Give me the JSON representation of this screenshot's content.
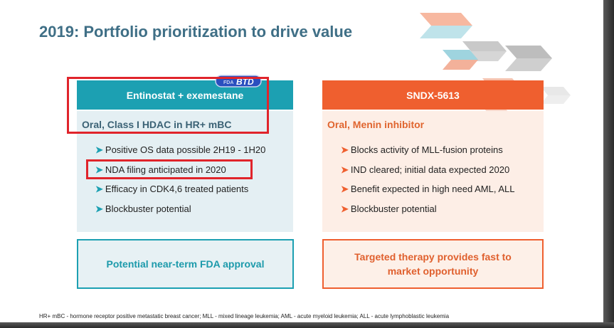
{
  "slide": {
    "title": "2019: Portfolio prioritization to drive value",
    "left": {
      "header": "Entinostat + exemestane",
      "badge": "BTD",
      "subtitle": "Oral, Class I HDAC in HR+ mBC",
      "bullets": [
        "Positive OS data possible 2H19 - 1H20",
        "NDA filing anticipated in 2020",
        "Efficacy in CDK4,6 treated patients",
        "Blockbuster potential"
      ],
      "footer": "Potential near-term FDA approval"
    },
    "right": {
      "header": "SNDX-5613",
      "subtitle": "Oral, Menin inhibitor",
      "bullets": [
        "Blocks activity of MLL-fusion proteins",
        "IND cleared; initial data expected 2020",
        "Benefit expected in high need AML, ALL",
        "Blockbuster potential"
      ],
      "footer_line1": "Targeted therapy provides fast to",
      "footer_line2": "market opportunity"
    },
    "footnote": "HR+ mBC - hormone receptor positive metastatic breast cancer; MLL - mixed lineage leukemia; AML - acute myeloid leukemia; ALL - acute lymphoblastic leukemia",
    "colors": {
      "title": "#3f6f86",
      "teal": "#1ca0b2",
      "orange": "#ef5f2f",
      "highlight_box": "#e0242b"
    }
  }
}
